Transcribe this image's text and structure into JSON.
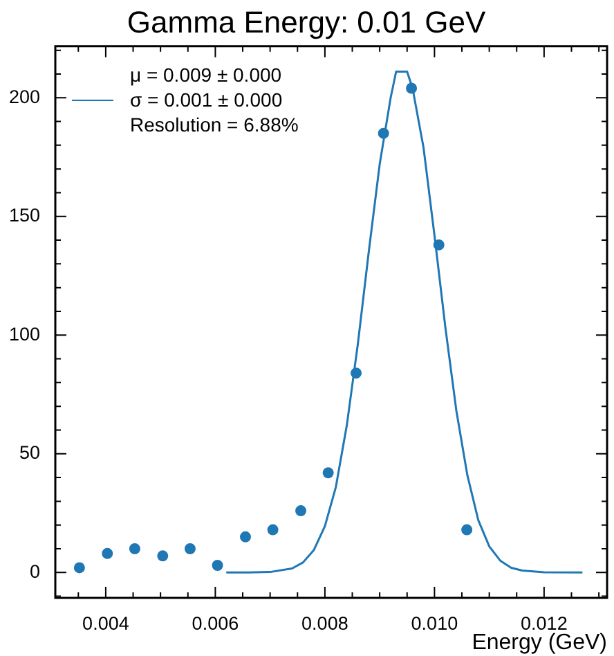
{
  "chart_data": {
    "type": "scatter",
    "title": "Gamma Energy: 0.01 GeV",
    "xlabel": "Energy (GeV)",
    "legend": "top left",
    "xlim": [
      0.00308,
      0.01315
    ],
    "ylim": [
      -10.7,
      221.7
    ],
    "xticks": [
      {
        "value": 0.0035,
        "label": null
      },
      {
        "value": 0.004,
        "label": "0.004"
      },
      {
        "value": 0.0045,
        "label": null
      },
      {
        "value": 0.005,
        "label": null
      },
      {
        "value": 0.0055,
        "label": null
      },
      {
        "value": 0.006,
        "label": "0.006"
      },
      {
        "value": 0.0065,
        "label": null
      },
      {
        "value": 0.007,
        "label": null
      },
      {
        "value": 0.0075,
        "label": null
      },
      {
        "value": 0.008,
        "label": "0.008"
      },
      {
        "value": 0.0085,
        "label": null
      },
      {
        "value": 0.009,
        "label": null
      },
      {
        "value": 0.0095,
        "label": null
      },
      {
        "value": 0.01,
        "label": "0.010"
      },
      {
        "value": 0.0105,
        "label": null
      },
      {
        "value": 0.011,
        "label": null
      },
      {
        "value": 0.0115,
        "label": null
      },
      {
        "value": 0.012,
        "label": "0.012"
      },
      {
        "value": 0.0125,
        "label": null
      },
      {
        "value": 0.013,
        "label": null
      }
    ],
    "yticks": [
      {
        "value": -10,
        "label": null
      },
      0,
      {
        "value": 10,
        "label": null
      },
      {
        "value": 20,
        "label": null
      },
      {
        "value": 30,
        "label": null
      },
      {
        "value": 40,
        "label": null
      },
      50,
      {
        "value": 60,
        "label": null
      },
      {
        "value": 70,
        "label": null
      },
      {
        "value": 80,
        "label": null
      },
      {
        "value": 90,
        "label": null
      },
      100,
      {
        "value": 110,
        "label": null
      },
      {
        "value": 120,
        "label": null
      },
      {
        "value": 130,
        "label": null
      },
      {
        "value": 140,
        "label": null
      },
      150,
      {
        "value": 160,
        "label": null
      },
      {
        "value": 170,
        "label": null
      },
      {
        "value": 180,
        "label": null
      },
      {
        "value": 190,
        "label": null
      },
      200,
      {
        "value": 210,
        "label": null
      },
      {
        "value": 220,
        "label": null
      }
    ],
    "series": [
      {
        "marker": "circle",
        "color": "#1f77b4",
        "x": [
          0.00352,
          0.00403,
          0.00453,
          0.00504,
          0.00554,
          0.00604,
          0.00655,
          0.00705,
          0.00756,
          0.00806,
          0.00857,
          0.00907,
          0.00958,
          0.01008,
          0.01059
        ],
        "values": [
          2,
          8,
          10,
          7,
          10,
          3,
          15,
          18,
          26,
          42,
          84,
          185,
          204,
          138,
          18
        ]
      },
      {
        "type": "line",
        "name": "μ = 0.009 ± 0.000\nσ = 0.001 ± 0.000\nResolution = 6.88%",
        "color": "#1f77b4",
        "x": [
          0.0062,
          0.0066,
          0.007,
          0.0074,
          0.0076,
          0.0078,
          0.008,
          0.0082,
          0.0084,
          0.0086,
          0.0088,
          0.009,
          0.0092,
          0.0093,
          0.0095,
          0.0096,
          0.0098,
          0.01,
          0.0102,
          0.0104,
          0.0106,
          0.0108,
          0.011,
          0.0112,
          0.0114,
          0.0116,
          0.012,
          0.0127
        ],
        "values": [
          0,
          0,
          0.2,
          1.7,
          4.2,
          9.5,
          19.5,
          36,
          62,
          96,
          135,
          172,
          200,
          211,
          211,
          204,
          179,
          142,
          103,
          68,
          41,
          22,
          11,
          5,
          2,
          0.8,
          0.1,
          0
        ]
      }
    ]
  }
}
